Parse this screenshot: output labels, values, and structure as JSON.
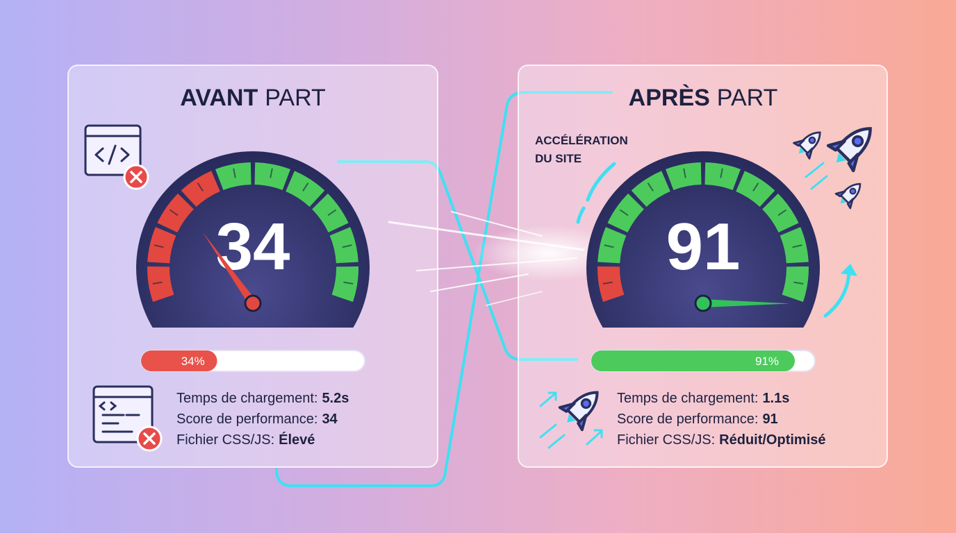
{
  "panels": [
    {
      "title": {
        "bold": "AVANT",
        "rest": "PART"
      },
      "score": 34,
      "progress": {
        "value": 34,
        "label": "34%"
      },
      "stats": [
        {
          "label": "Temps de chargement:",
          "value": "5.2s"
        },
        {
          "label": "Score de performance:",
          "value": "34"
        },
        {
          "label": "Fichier CSS/JS:",
          "value": "Élevé"
        }
      ]
    },
    {
      "title": {
        "bold": "APRÈS",
        "rest": "PART"
      },
      "score": 91,
      "callout": [
        "ACCÉLÉRATION",
        "DU SITE"
      ],
      "progress": {
        "value": 91,
        "label": "91%"
      },
      "stats": [
        {
          "label": "Temps de chargement:",
          "value": "1.1s"
        },
        {
          "label": "Score de performance:",
          "value": "91"
        },
        {
          "label": "Fichier CSS/JS:",
          "value": "Réduit/Optimisé"
        }
      ]
    }
  ]
}
